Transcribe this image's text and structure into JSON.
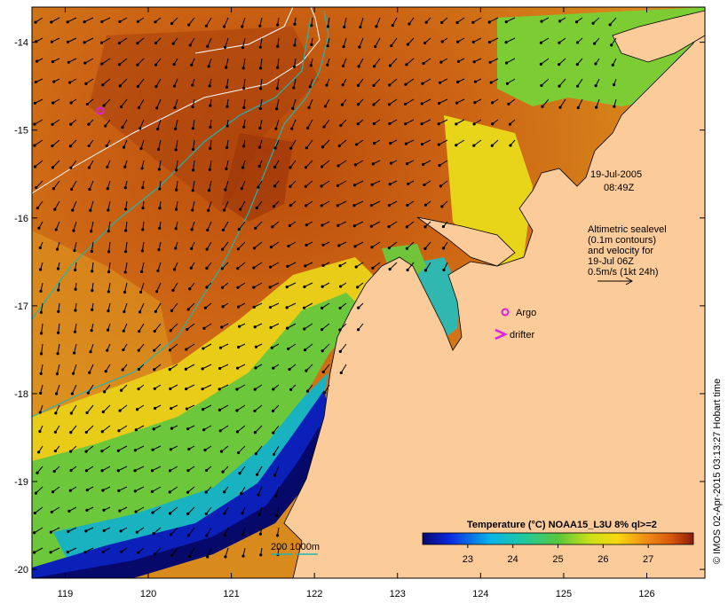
{
  "map": {
    "timestamp_date": "19-Jul-2005",
    "timestamp_time": "08:49Z",
    "annotation_lines": [
      "Altimetric sealevel",
      "(0.1m contours)",
      "and velocity for",
      "19-Jul 06Z",
      "0.5m/s (1kt 24h)"
    ],
    "legend_argo": "Argo",
    "legend_drifter": "drifter",
    "depth_legend": "200  1000m",
    "credit": "© IMOS 02-Apr-2015 03:13:27 Hobart time",
    "colorbar": {
      "title": "Temperature (°C) NOAA15_L3U 8% ql>=2",
      "range": [
        22,
        28
      ],
      "ticks": [
        "23",
        "24",
        "25",
        "26",
        "27"
      ],
      "tick_values": [
        23,
        24,
        25,
        26,
        27
      ]
    },
    "axes": {
      "lon_range": [
        118.6,
        126.7
      ],
      "lat_range": [
        -20.1,
        -13.6
      ],
      "lon_ticks": [
        119,
        120,
        121,
        122,
        123,
        124,
        125,
        126
      ],
      "lon_labels": [
        "119",
        "120",
        "121",
        "122",
        "123",
        "124",
        "125",
        "126"
      ],
      "lat_ticks": [
        -14,
        -15,
        -16,
        -17,
        -18,
        -19,
        -20
      ],
      "lat_labels": [
        "-14",
        "-15",
        "-16",
        "-17",
        "-18",
        "-19",
        "-20"
      ]
    },
    "colors": {
      "land": "#fccb9a",
      "arrows": "#000000",
      "sealevel_contour": "#ffffff",
      "depth_contour": "#22b5ac",
      "argo_marker": "#e020e0",
      "drifter_marker": "#e020e0"
    }
  }
}
